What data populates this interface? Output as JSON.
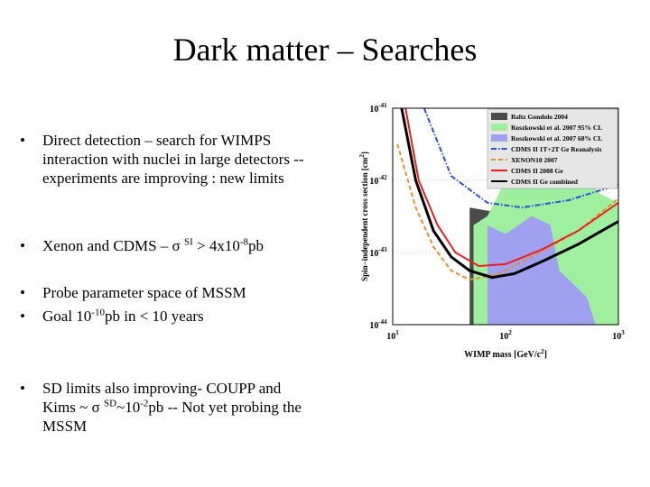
{
  "title": "Dark matter – Searches",
  "bullets": [
    {
      "runs": [
        {
          "text": "Direct detection – search for WIMPS interaction with nuclei in large detectors -- experiments are improving : new limits"
        }
      ]
    },
    {
      "runs": [
        {
          "text": "Xenon and CDMS – σ "
        },
        {
          "sup": "SI"
        },
        {
          "text": " > 4x10"
        },
        {
          "sup": "-8"
        },
        {
          "text": "pb"
        }
      ]
    },
    {
      "runs": [
        {
          "text": "Probe parameter space of MSSM"
        }
      ]
    },
    {
      "runs": [
        {
          "text": "Goal 10"
        },
        {
          "sup": "-10"
        },
        {
          "text": "pb in < 10 years"
        }
      ]
    },
    {
      "runs": [
        {
          "text": "SD limits also improving- COUPP and Kims ~ σ "
        },
        {
          "sup": "SD"
        },
        {
          "text": "~10"
        },
        {
          "sup": "-2"
        },
        {
          "text": "pb -- Not yet probing the MSSM"
        }
      ]
    }
  ],
  "chart_data": {
    "type": "line",
    "x_label": [
      {
        "text": "WIMP mass [GeV/c"
      },
      {
        "sup": "2"
      },
      {
        "text": "]"
      }
    ],
    "y_label": [
      {
        "text": "Spin−independent cross section [cm"
      },
      {
        "sup": "2"
      },
      {
        "text": "]"
      }
    ],
    "log_x": true,
    "log_y": true,
    "grid": true,
    "xlim": [
      10,
      1000
    ],
    "ylim": [
      1e-44,
      1e-41
    ],
    "xticks": [
      {
        "value": 10,
        "label": "10",
        "exponent": "1"
      },
      {
        "value": 100,
        "label": "10",
        "exponent": "2"
      },
      {
        "value": 1000,
        "label": "10",
        "exponent": "3"
      }
    ],
    "yticks": [
      {
        "value": 1e-44,
        "label": "10",
        "exponent": "-44"
      },
      {
        "value": 1e-43,
        "label": "10",
        "exponent": "-43"
      },
      {
        "value": 1e-42,
        "label": "10",
        "exponent": "-42"
      },
      {
        "value": 1e-41,
        "label": "10",
        "exponent": "-41"
      }
    ],
    "legend": "upper right",
    "series": [
      {
        "name": "Baltz Gondolo 2004",
        "color": "#4a4a4a",
        "fill": true,
        "style": "solid",
        "x": [
          48,
          48,
          76,
          83,
          120,
          300,
          1000,
          1000
        ],
        "values": [
          1e-44,
          4.2e-43,
          3.7e-43,
          5.6e-44,
          1.8e-44,
          1.15e-44,
          2.4e-44,
          1e-44
        ]
      },
      {
        "name": "Roszkowski et al. 2007 95% CL",
        "color": "#9ef09e",
        "fill": true,
        "style": "solid",
        "x": [
          52,
          52,
          69,
          100,
          210,
          440,
          690,
          1000,
          1000
        ],
        "values": [
          1e-44,
          2.4e-43,
          3.2e-43,
          1e-42,
          3.2e-42,
          1.5e-42,
          6.5e-43,
          4.9e-43,
          1e-44
        ]
      },
      {
        "name": "Roszkowski et al. 2007 68% CL",
        "color": "#a0a0f0",
        "fill": true,
        "style": "solid",
        "x": [
          69,
          69,
          100,
          170,
          250,
          300,
          525,
          630
        ],
        "values": [
          1e-44,
          2.4e-43,
          1.8e-43,
          3.2e-43,
          2.4e-43,
          5.6e-44,
          2.4e-44,
          1e-44
        ]
      },
      {
        "name": "CDMS II 1T+2T Ge Reanalysis",
        "color": "#2a4fd8",
        "fill": false,
        "style": "dashdot",
        "x": [
          19,
          33,
          69,
          140,
          360,
          1000
        ],
        "values": [
          1e-41,
          1.15e-42,
          4.9e-43,
          4.2e-43,
          5.3e-43,
          8.7e-43
        ]
      },
      {
        "name": "XENON10 2007",
        "color": "#e8902a",
        "fill": false,
        "style": "dashed",
        "x": [
          11,
          16,
          23,
          33,
          48,
          83,
          170,
          440,
          1000
        ],
        "values": [
          3.2e-42,
          4.2e-43,
          1.2e-43,
          5.6e-44,
          4.2e-44,
          4.9e-44,
          8.7e-44,
          2e-43,
          5.6e-43
        ]
      },
      {
        "name": "CDMS II 2008 Ge",
        "color": "#e8201c",
        "fill": false,
        "style": "solid",
        "x": [
          13,
          17,
          25,
          36,
          58,
          100,
          210,
          440,
          1000
        ],
        "values": [
          1e-41,
          1e-42,
          2.4e-43,
          1e-43,
          6.5e-44,
          6.9e-44,
          1.1e-43,
          2e-43,
          4.9e-43
        ]
      },
      {
        "name": "CDMS II Ge combined",
        "color": "#000000",
        "fill": false,
        "style": "solid",
        "x": [
          12,
          16,
          23,
          33,
          48,
          76,
          120,
          210,
          440,
          1000
        ],
        "values": [
          1e-41,
          1e-42,
          2e-43,
          8.7e-44,
          5.6e-44,
          4.5e-44,
          5.1e-44,
          7.5e-44,
          1.3e-43,
          2.7e-43
        ]
      }
    ]
  }
}
